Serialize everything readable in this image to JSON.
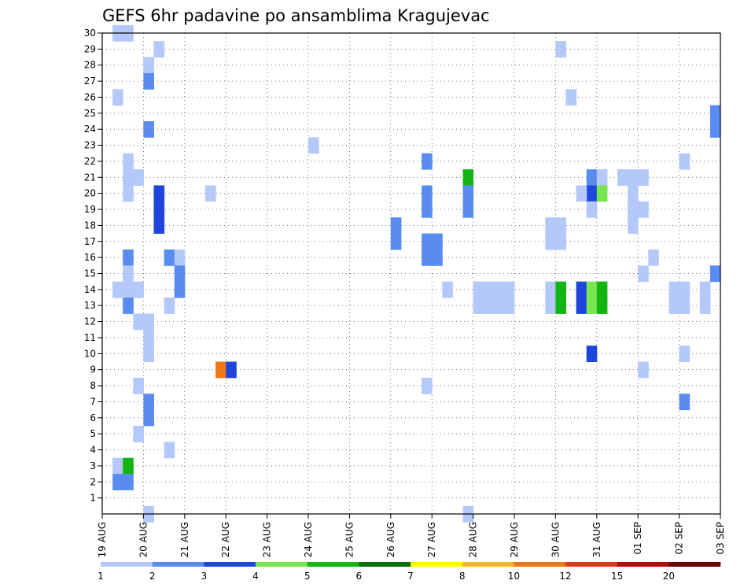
{
  "chart_data": {
    "type": "heatmap",
    "title": "GEFS 6hr padavine po ansamblima Kragujevac",
    "x_ticks": [
      "19 AUG",
      "20 AUG",
      "21 AUG",
      "22 AUG",
      "23 AUG",
      "24 AUG",
      "25 AUG",
      "26 AUG",
      "27 AUG",
      "28 AUG",
      "29 AUG",
      "30 AUG",
      "31 AUG",
      "01 SEP",
      "02 SEP",
      "03 SEP"
    ],
    "y_ticks": [
      "1",
      "2",
      "3",
      "4",
      "5",
      "6",
      "7",
      "8",
      "9",
      "10",
      "11",
      "12",
      "13",
      "14",
      "15",
      "16",
      "17",
      "18",
      "19",
      "20",
      "21",
      "22",
      "23",
      "24",
      "25",
      "26",
      "27",
      "28",
      "29",
      "30"
    ],
    "xlim": [
      0,
      60
    ],
    "ylim": [
      0,
      30
    ],
    "grid": true,
    "colorbar": {
      "labels": [
        "1",
        "2",
        "3",
        "4",
        "5",
        "6",
        "7",
        "8",
        "10",
        "12",
        "15",
        "20"
      ],
      "colors": [
        "#b4c8fa",
        "#5a8cf0",
        "#1e46dc",
        "#78e650",
        "#14b414",
        "#0a6e0a",
        "#fafa00",
        "#fab428",
        "#f07814",
        "#dc3c14",
        "#b40a0a",
        "#6e0000"
      ]
    },
    "cells": [
      [
        1.5,
        30,
        1
      ],
      [
        2.5,
        30,
        1
      ],
      [
        5.5,
        29,
        1
      ],
      [
        4.5,
        28,
        1
      ],
      [
        4.5,
        27,
        2
      ],
      [
        1.5,
        26,
        1
      ],
      [
        4.5,
        24,
        2
      ],
      [
        2.5,
        22,
        1
      ],
      [
        2.5,
        21,
        1
      ],
      [
        3.5,
        21,
        1
      ],
      [
        2.5,
        20,
        1
      ],
      [
        5.5,
        20,
        3
      ],
      [
        5.5,
        19,
        3
      ],
      [
        5.5,
        18,
        3
      ],
      [
        10.5,
        20,
        1
      ],
      [
        20.5,
        23,
        1
      ],
      [
        31.5,
        22,
        2
      ],
      [
        31.5,
        20,
        2
      ],
      [
        31.5,
        19,
        2
      ],
      [
        35.5,
        21,
        5
      ],
      [
        35.5,
        20,
        2
      ],
      [
        35.5,
        19,
        2
      ],
      [
        28.5,
        18,
        2
      ],
      [
        28.5,
        17,
        2
      ],
      [
        31.5,
        17,
        2
      ],
      [
        32.5,
        17,
        2
      ],
      [
        31.5,
        16,
        2
      ],
      [
        32.5,
        16,
        2
      ],
      [
        43.5,
        18,
        1
      ],
      [
        44.5,
        18,
        1
      ],
      [
        43.5,
        17,
        1
      ],
      [
        44.5,
        17,
        1
      ],
      [
        44.5,
        29,
        1
      ],
      [
        45.5,
        26,
        1
      ],
      [
        59.5,
        25,
        2
      ],
      [
        59.5,
        24,
        2
      ],
      [
        56.5,
        22,
        1
      ],
      [
        47.5,
        21,
        2
      ],
      [
        48.5,
        21,
        1
      ],
      [
        47.5,
        20,
        3
      ],
      [
        46.5,
        20,
        1
      ],
      [
        48.5,
        20,
        4
      ],
      [
        47.5,
        19,
        1
      ],
      [
        50.5,
        21,
        1
      ],
      [
        51.5,
        21,
        1
      ],
      [
        52.5,
        21,
        1
      ],
      [
        51.5,
        20,
        1
      ],
      [
        51.5,
        19,
        1
      ],
      [
        52.5,
        19,
        1
      ],
      [
        51.5,
        18,
        1
      ],
      [
        53.5,
        16,
        1
      ],
      [
        52.5,
        15,
        1
      ],
      [
        2.5,
        16,
        2
      ],
      [
        2.5,
        15,
        1
      ],
      [
        1.5,
        14,
        1
      ],
      [
        2.5,
        14,
        1
      ],
      [
        3.5,
        14,
        1
      ],
      [
        2.5,
        13,
        2
      ],
      [
        6.5,
        16,
        2
      ],
      [
        7.5,
        16,
        1
      ],
      [
        7.5,
        15,
        2
      ],
      [
        7.5,
        14,
        2
      ],
      [
        6.5,
        13,
        1
      ],
      [
        3.5,
        12,
        1
      ],
      [
        4.5,
        12,
        1
      ],
      [
        4.5,
        11,
        1
      ],
      [
        4.5,
        10,
        1
      ],
      [
        3.5,
        8,
        1
      ],
      [
        4.5,
        7,
        2
      ],
      [
        4.5,
        6,
        2
      ],
      [
        3.5,
        5,
        1
      ],
      [
        6.5,
        4,
        1
      ],
      [
        1.5,
        3,
        1
      ],
      [
        2.5,
        3,
        5
      ],
      [
        1.5,
        2,
        2
      ],
      [
        2.5,
        2,
        2
      ],
      [
        4.5,
        0,
        1
      ],
      [
        11.5,
        9,
        9
      ],
      [
        12.5,
        9,
        3
      ],
      [
        33.5,
        14,
        1
      ],
      [
        36.5,
        14,
        1
      ],
      [
        37.5,
        14,
        1
      ],
      [
        38.5,
        14,
        1
      ],
      [
        39.5,
        14,
        1
      ],
      [
        36.5,
        13,
        1
      ],
      [
        37.5,
        13,
        1
      ],
      [
        38.5,
        13,
        1
      ],
      [
        39.5,
        13,
        1
      ],
      [
        43.5,
        14,
        1
      ],
      [
        43.5,
        13,
        1
      ],
      [
        44.5,
        14,
        5
      ],
      [
        44.5,
        13,
        5
      ],
      [
        46.5,
        14,
        3
      ],
      [
        46.5,
        13,
        3
      ],
      [
        47.5,
        14,
        4
      ],
      [
        47.5,
        13,
        4
      ],
      [
        48.5,
        14,
        5
      ],
      [
        48.5,
        13,
        5
      ],
      [
        55.5,
        14,
        1
      ],
      [
        56.5,
        14,
        1
      ],
      [
        55.5,
        13,
        1
      ],
      [
        56.5,
        13,
        1
      ],
      [
        58.5,
        14,
        1
      ],
      [
        58.5,
        13,
        1
      ],
      [
        59.5,
        15,
        2
      ],
      [
        47.5,
        10,
        3
      ],
      [
        52.5,
        9,
        1
      ],
      [
        56.5,
        10,
        1
      ],
      [
        31.5,
        8,
        1
      ],
      [
        56.5,
        7,
        2
      ],
      [
        35.5,
        0,
        1
      ]
    ]
  }
}
